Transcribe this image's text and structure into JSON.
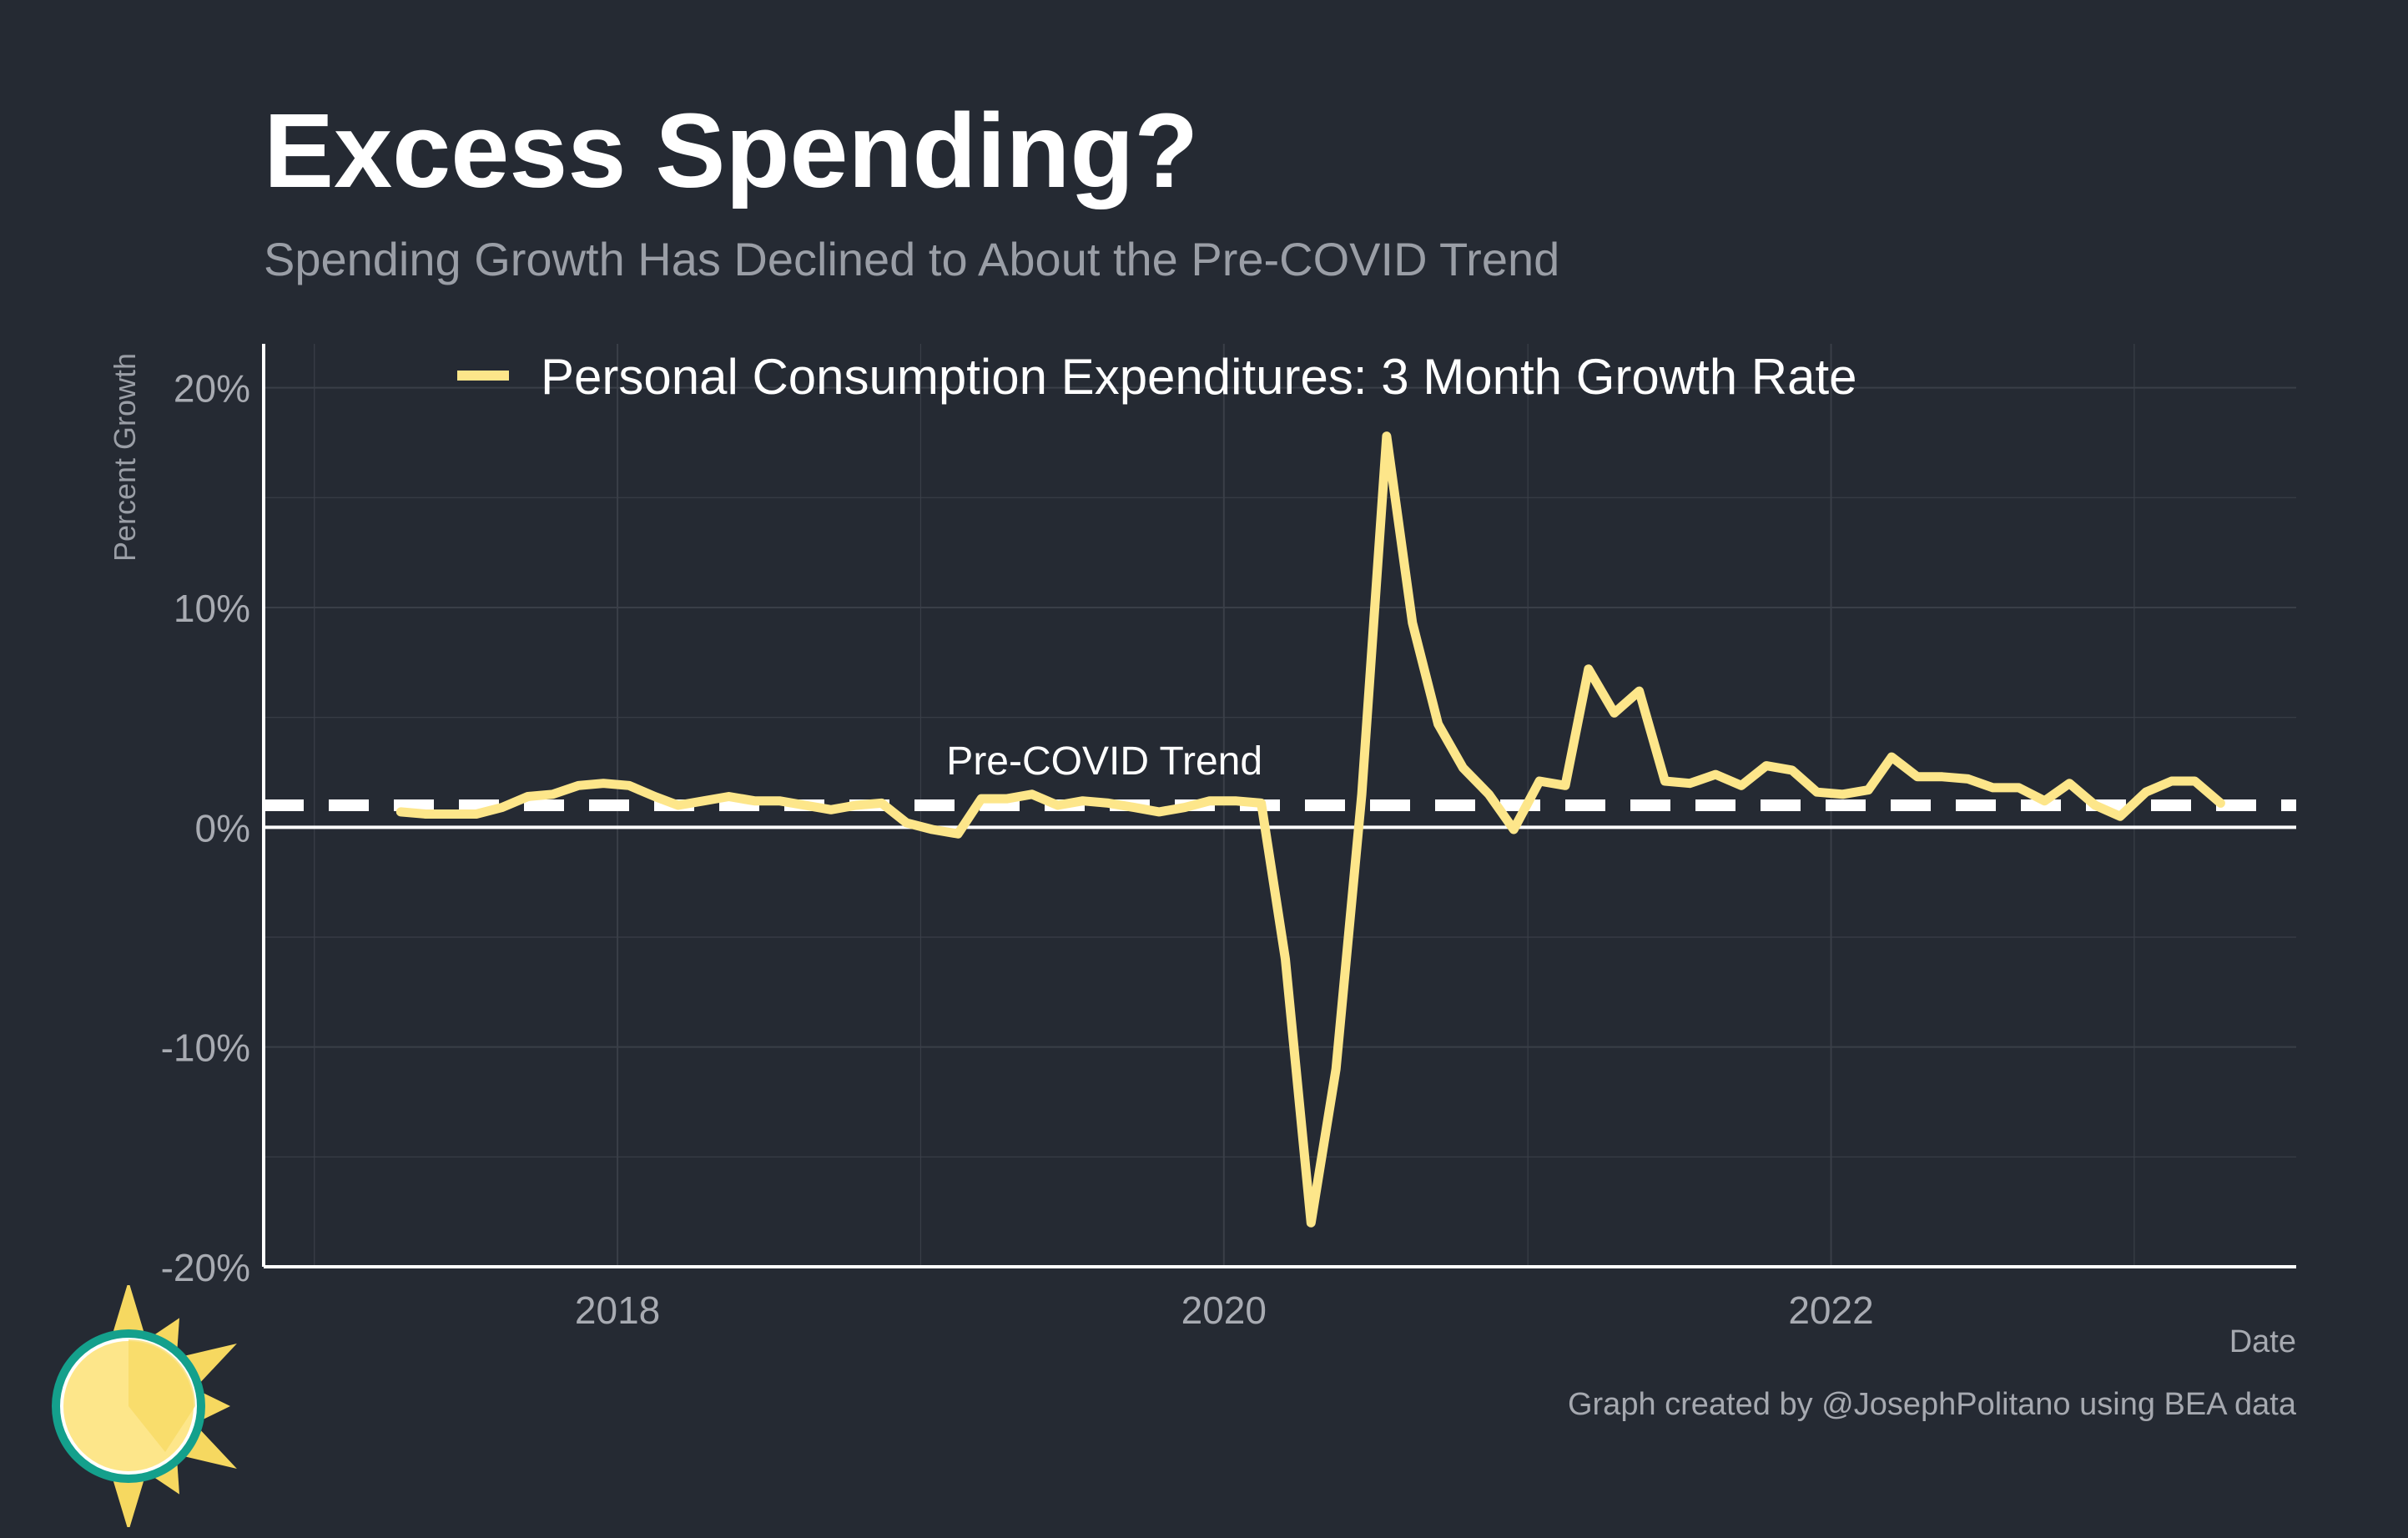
{
  "header": {
    "title": "Excess Spending?",
    "subtitle": "Spending Growth Has Declined to About the Pre-COVID Trend"
  },
  "caption": "Graph created by @JosephPolitano using BEA data",
  "colors": {
    "background": "#252a33",
    "series": "#fde68a",
    "grid": "#3a3f48",
    "axis": "#ffffff",
    "tick_text": "#a8abb2",
    "logo_ring": "#14a08c",
    "logo_sun": "#fde68a",
    "logo_rays": "#f6d860"
  },
  "icons": {
    "logo": "sun-clock-logo-icon"
  },
  "chart_data": {
    "type": "line",
    "xlabel": "Date",
    "ylabel": "Percent Growth",
    "xlim": [
      "2016-11-01",
      "2023-07-15"
    ],
    "ylim": [
      -20,
      22
    ],
    "x_ticks": [
      {
        "date": "2018-01-01",
        "label": "2018"
      },
      {
        "date": "2020-01-01",
        "label": "2020"
      },
      {
        "date": "2022-01-01",
        "label": "2022"
      }
    ],
    "y_ticks": [
      {
        "value": 20,
        "label": "20%"
      },
      {
        "value": 10,
        "label": "10%"
      },
      {
        "value": 0,
        "label": "0%"
      },
      {
        "value": -10,
        "label": "-10%"
      },
      {
        "value": -20,
        "label": "-20%"
      }
    ],
    "grid": true,
    "legend": {
      "placement": "top-left"
    },
    "trend": {
      "value": 1.0,
      "label": "Pre-COVID Trend",
      "label_date": "2019-02-01",
      "label_value": 2.4
    },
    "series": [
      {
        "name": "Personal Consumption Expenditures: 3 Month Growth Rate",
        "x": [
          "2017-04",
          "2017-05",
          "2017-06",
          "2017-07",
          "2017-08",
          "2017-09",
          "2017-10",
          "2017-11",
          "2017-12",
          "2018-01",
          "2018-02",
          "2018-03",
          "2018-04",
          "2018-05",
          "2018-06",
          "2018-07",
          "2018-08",
          "2018-09",
          "2018-10",
          "2018-11",
          "2018-12",
          "2019-01",
          "2019-02",
          "2019-03",
          "2019-04",
          "2019-05",
          "2019-06",
          "2019-07",
          "2019-08",
          "2019-09",
          "2019-10",
          "2019-11",
          "2019-12",
          "2020-01",
          "2020-02",
          "2020-03",
          "2020-04",
          "2020-05",
          "2020-06",
          "2020-07",
          "2020-08",
          "2020-09",
          "2020-10",
          "2020-11",
          "2020-12",
          "2021-01",
          "2021-02",
          "2021-03",
          "2021-04",
          "2021-05",
          "2021-06",
          "2021-07",
          "2021-08",
          "2021-09",
          "2021-10",
          "2021-11",
          "2021-12",
          "2022-01",
          "2022-02",
          "2022-03",
          "2022-04",
          "2022-05",
          "2022-06",
          "2022-07",
          "2022-08",
          "2022-09",
          "2022-10",
          "2022-11",
          "2022-12",
          "2023-01",
          "2023-02",
          "2023-03",
          "2023-04"
        ],
        "values": [
          0.7,
          0.6,
          0.6,
          0.6,
          0.9,
          1.4,
          1.5,
          1.9,
          2.0,
          1.9,
          1.4,
          1.0,
          1.2,
          1.4,
          1.2,
          1.2,
          1.0,
          0.8,
          1.0,
          1.1,
          0.2,
          -0.1,
          -0.3,
          1.3,
          1.3,
          1.5,
          1.0,
          1.2,
          1.1,
          0.9,
          0.7,
          0.9,
          1.2,
          1.2,
          1.1,
          -6.0,
          -18.0,
          -11.0,
          1.5,
          17.8,
          9.3,
          4.7,
          2.7,
          1.5,
          -0.1,
          2.1,
          1.9,
          7.2,
          5.2,
          6.2,
          2.1,
          2.0,
          2.4,
          1.9,
          2.8,
          2.6,
          1.6,
          1.5,
          1.7,
          3.2,
          2.3,
          2.3,
          2.2,
          1.8,
          1.8,
          1.2,
          2.0,
          1.0,
          0.5,
          1.6,
          2.1,
          2.1,
          1.1
        ]
      }
    ]
  }
}
